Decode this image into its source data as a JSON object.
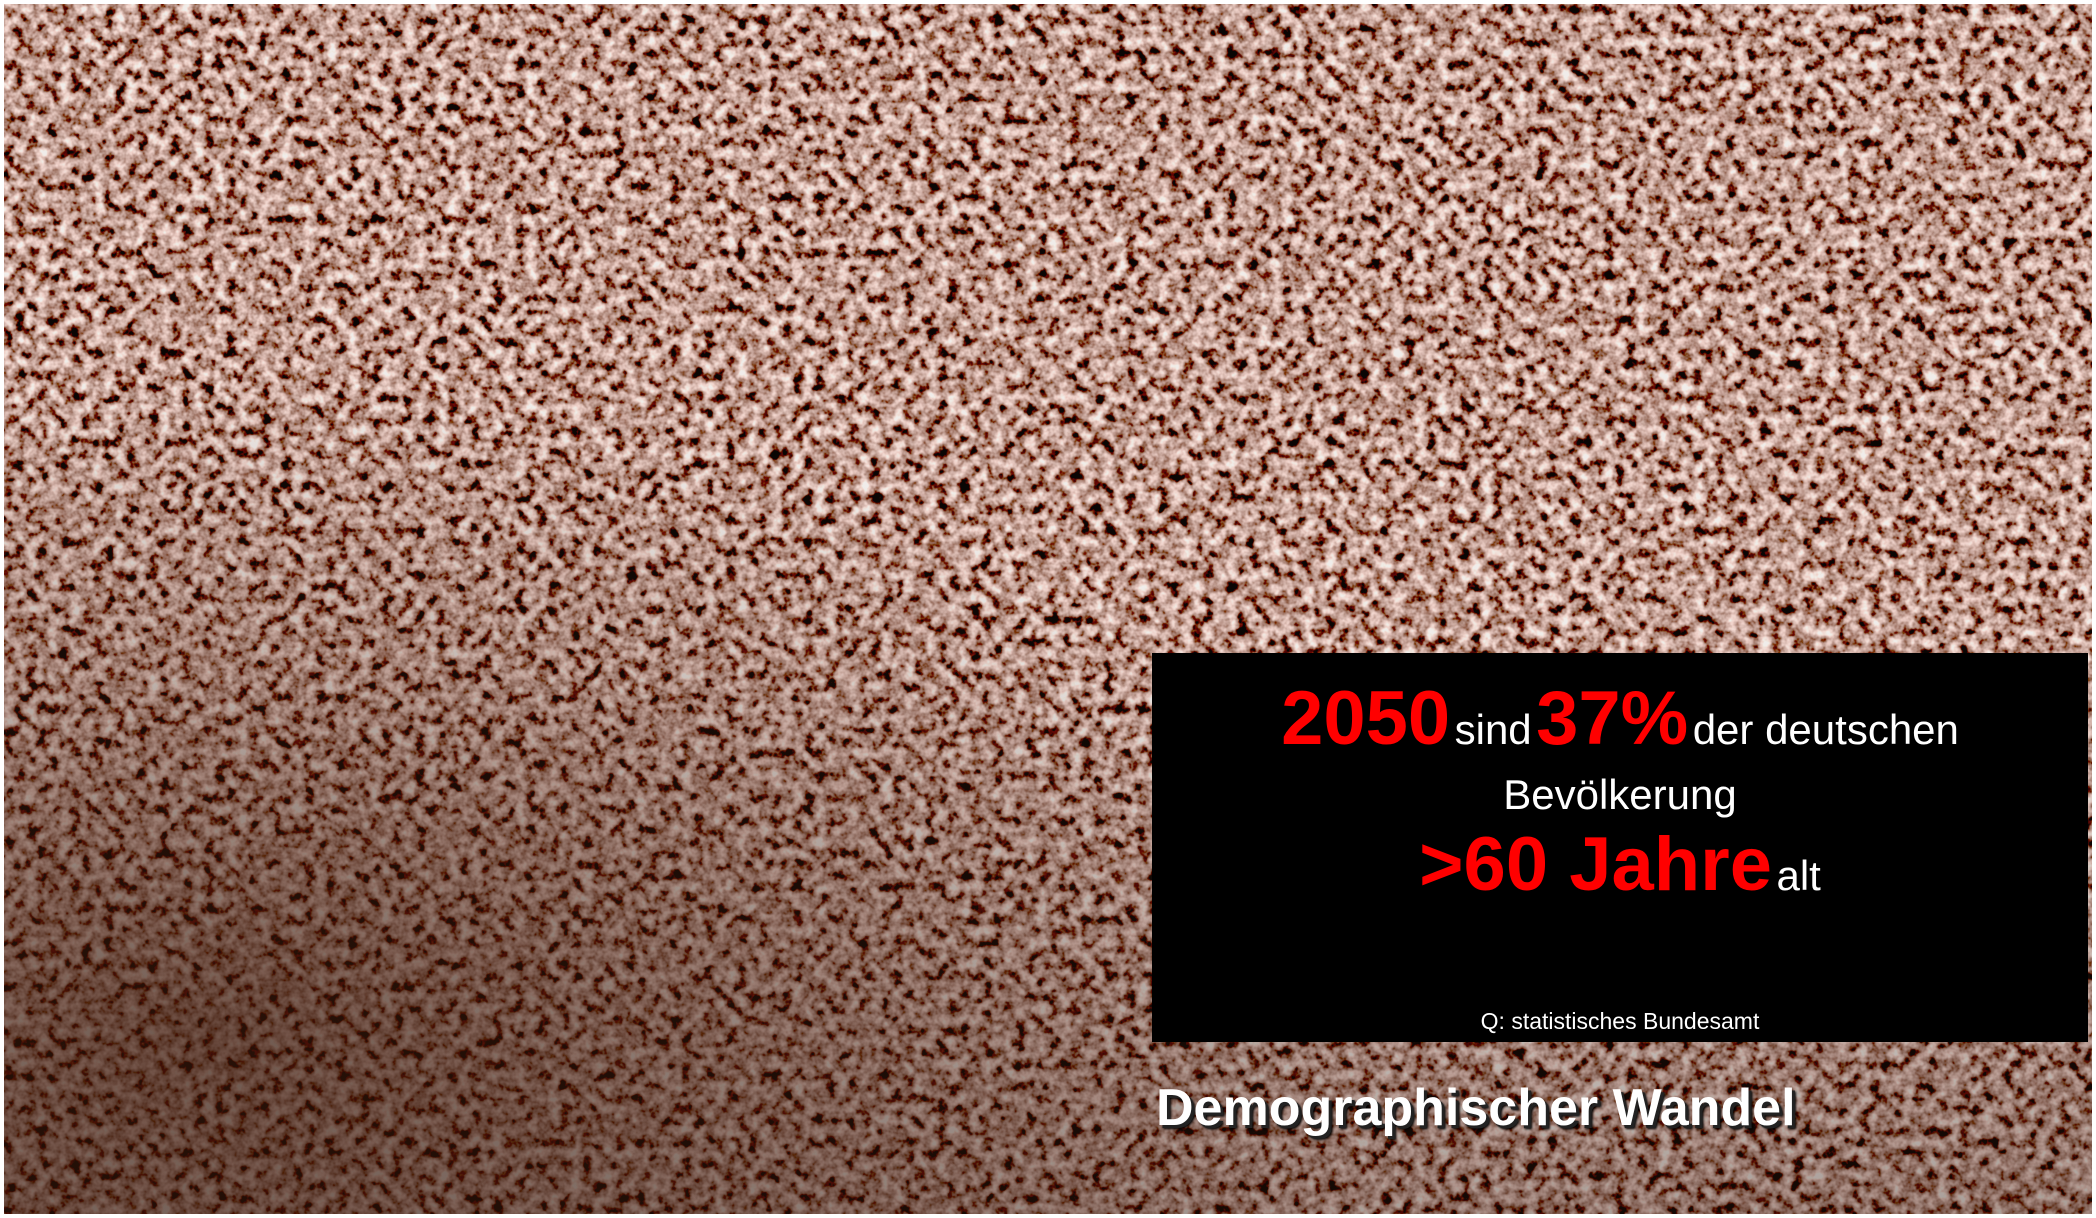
{
  "info_box": {
    "line1": {
      "year": "2050",
      "verb": "sind",
      "share": "37%",
      "rest": "der deutschen"
    },
    "line2": "Bevölkerung",
    "line3": {
      "age": ">60 Jahre",
      "rest": "alt"
    },
    "source": "Q: statistisches Bundesamt"
  },
  "title": "Demographischer Wandel"
}
